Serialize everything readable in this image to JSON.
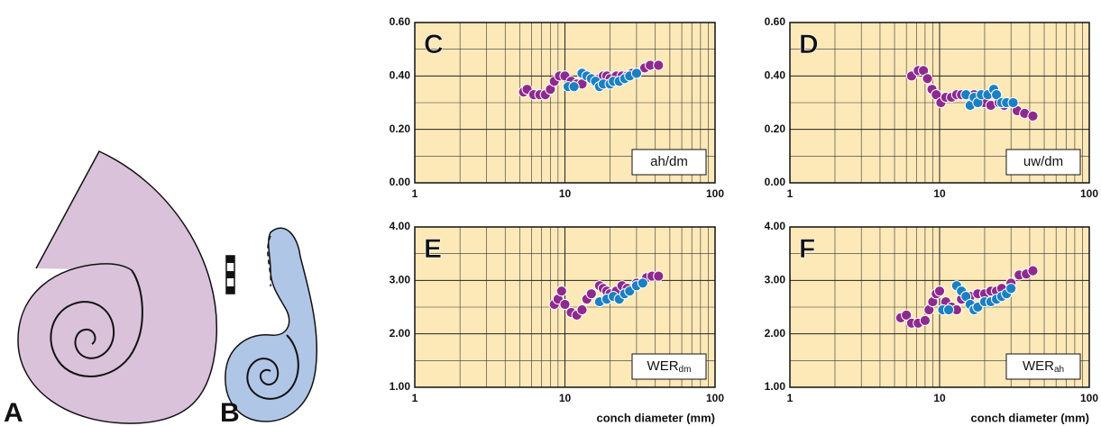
{
  "figure_labels": [
    "A",
    "B"
  ],
  "chart_data": [
    {
      "type": "scatter",
      "panel": "C",
      "label": "ah/dm",
      "log_x": true,
      "grid": true,
      "background": "#fde9b8",
      "xlim": [
        1,
        100
      ],
      "xticks": [
        1,
        10,
        100
      ],
      "xminorticks": [
        2,
        3,
        4,
        5,
        6,
        7,
        8,
        9,
        20,
        30,
        40,
        50,
        60,
        70,
        80,
        90
      ],
      "ylim": [
        0,
        0.6
      ],
      "yticks": [
        {
          "value": 0,
          "label": "0.00"
        },
        {
          "value": 0.2,
          "label": "0.20"
        },
        {
          "value": 0.4,
          "label": "0.40"
        },
        {
          "value": 0.6,
          "label": "0.60"
        }
      ],
      "yminorticks": [
        0.1,
        0.3,
        0.5
      ],
      "series": [
        {
          "color": "#8e2a8e",
          "x": [
            5.3,
            5.6,
            6.2,
            6.8,
            7.4,
            8.0,
            8.5,
            9.2,
            10,
            11,
            12,
            13,
            17,
            18,
            19,
            20,
            22,
            24,
            26,
            28,
            34,
            37,
            42
          ],
          "values": [
            0.34,
            0.35,
            0.33,
            0.33,
            0.33,
            0.35,
            0.38,
            0.4,
            0.4,
            0.38,
            0.37,
            0.37,
            0.39,
            0.4,
            0.4,
            0.39,
            0.4,
            0.4,
            0.4,
            0.41,
            0.43,
            0.44,
            0.44
          ]
        },
        {
          "color": "#1b80c2",
          "x": [
            10.5,
            11.5,
            13,
            14,
            15,
            16,
            17,
            18,
            20,
            21,
            23,
            25,
            27,
            30
          ],
          "values": [
            0.36,
            0.36,
            0.41,
            0.4,
            0.39,
            0.38,
            0.36,
            0.37,
            0.37,
            0.38,
            0.38,
            0.39,
            0.4,
            0.41
          ]
        }
      ]
    },
    {
      "type": "scatter",
      "panel": "D",
      "label": "uw/dm",
      "log_x": true,
      "grid": true,
      "background": "#fde9b8",
      "xlim": [
        1,
        100
      ],
      "xticks": [
        1,
        10,
        100
      ],
      "xminorticks": [
        2,
        3,
        4,
        5,
        6,
        7,
        8,
        9,
        20,
        30,
        40,
        50,
        60,
        70,
        80,
        90
      ],
      "ylim": [
        0,
        0.6
      ],
      "yticks": [
        {
          "value": 0,
          "label": "0.00"
        },
        {
          "value": 0.2,
          "label": "0.20"
        },
        {
          "value": 0.4,
          "label": "0.40"
        },
        {
          "value": 0.6,
          "label": "0.60"
        }
      ],
      "yminorticks": [
        0.1,
        0.3,
        0.5
      ],
      "series": [
        {
          "color": "#8e2a8e",
          "x": [
            6.5,
            7.2,
            7.8,
            8.3,
            8.9,
            9.5,
            10.2,
            11,
            12,
            13,
            14,
            17,
            18,
            20,
            22,
            25,
            27,
            33,
            37,
            42
          ],
          "values": [
            0.4,
            0.42,
            0.42,
            0.39,
            0.35,
            0.33,
            0.3,
            0.32,
            0.32,
            0.33,
            0.33,
            0.33,
            0.32,
            0.3,
            0.29,
            0.3,
            0.29,
            0.27,
            0.26,
            0.25
          ]
        },
        {
          "color": "#1b80c2",
          "x": [
            15,
            16,
            17,
            18,
            19,
            21,
            23,
            24,
            26,
            28,
            31
          ],
          "values": [
            0.33,
            0.29,
            0.32,
            0.3,
            0.33,
            0.33,
            0.35,
            0.33,
            0.3,
            0.3,
            0.3
          ]
        }
      ]
    },
    {
      "type": "scatter",
      "panel": "E",
      "label": "WER",
      "label_sub": "dm",
      "xlabel": "conch diameter (mm)",
      "log_x": true,
      "grid": true,
      "background": "#fde9b8",
      "xlim": [
        1,
        100
      ],
      "xticks": [
        1,
        10,
        100
      ],
      "xminorticks": [
        2,
        3,
        4,
        5,
        6,
        7,
        8,
        9,
        20,
        30,
        40,
        50,
        60,
        70,
        80,
        90
      ],
      "ylim": [
        1,
        4
      ],
      "yticks": [
        {
          "value": 1,
          "label": "1.00"
        },
        {
          "value": 2,
          "label": "2.00"
        },
        {
          "value": 3,
          "label": "3.00"
        },
        {
          "value": 4,
          "label": "4.00"
        }
      ],
      "yminorticks": [
        1.5,
        2.5,
        3.5
      ],
      "series": [
        {
          "color": "#8e2a8e",
          "x": [
            8.5,
            9,
            9.5,
            10,
            11,
            12,
            13,
            14,
            15,
            17,
            18,
            19,
            20,
            22,
            24,
            26,
            30,
            35,
            38,
            42
          ],
          "values": [
            2.55,
            2.65,
            2.8,
            2.55,
            2.4,
            2.35,
            2.45,
            2.65,
            2.75,
            2.9,
            2.85,
            2.8,
            2.75,
            2.8,
            2.9,
            2.85,
            2.95,
            3.05,
            3.08,
            3.08
          ]
        },
        {
          "color": "#1b80c2",
          "x": [
            17,
            19,
            21,
            23,
            25,
            27,
            30,
            33
          ],
          "values": [
            2.6,
            2.65,
            2.7,
            2.65,
            2.75,
            2.8,
            2.9,
            2.95
          ]
        }
      ]
    },
    {
      "type": "scatter",
      "panel": "F",
      "label": "WER",
      "label_sub": "ah",
      "xlabel": "conch diameter (mm)",
      "log_x": true,
      "grid": true,
      "background": "#fde9b8",
      "xlim": [
        1,
        100
      ],
      "xticks": [
        1,
        10,
        100
      ],
      "xminorticks": [
        2,
        3,
        4,
        5,
        6,
        7,
        8,
        9,
        20,
        30,
        40,
        50,
        60,
        70,
        80,
        90
      ],
      "ylim": [
        1,
        4
      ],
      "yticks": [
        {
          "value": 1,
          "label": "1.00"
        },
        {
          "value": 2,
          "label": "2.00"
        },
        {
          "value": 3,
          "label": "3.00"
        },
        {
          "value": 4,
          "label": "4.00"
        }
      ],
      "yminorticks": [
        1.5,
        2.5,
        3.5
      ],
      "series": [
        {
          "color": "#8e2a8e",
          "x": [
            5.5,
            6,
            6.5,
            7.2,
            8,
            8.5,
            9,
            9.5,
            10,
            11,
            12,
            13,
            14,
            16,
            18,
            20,
            22,
            24,
            26,
            30,
            34,
            38,
            42
          ],
          "values": [
            2.3,
            2.35,
            2.2,
            2.2,
            2.25,
            2.45,
            2.6,
            2.75,
            2.8,
            2.6,
            2.5,
            2.45,
            2.65,
            2.7,
            2.75,
            2.75,
            2.8,
            2.8,
            2.85,
            2.95,
            3.1,
            3.12,
            3.18
          ]
        },
        {
          "color": "#1b80c2",
          "x": [
            10.5,
            11.5,
            13,
            14,
            15,
            16,
            17,
            18,
            20,
            22,
            24,
            26,
            28,
            30
          ],
          "values": [
            2.45,
            2.45,
            2.9,
            2.8,
            2.7,
            2.55,
            2.45,
            2.5,
            2.6,
            2.6,
            2.65,
            2.7,
            2.75,
            2.85
          ]
        }
      ]
    }
  ]
}
